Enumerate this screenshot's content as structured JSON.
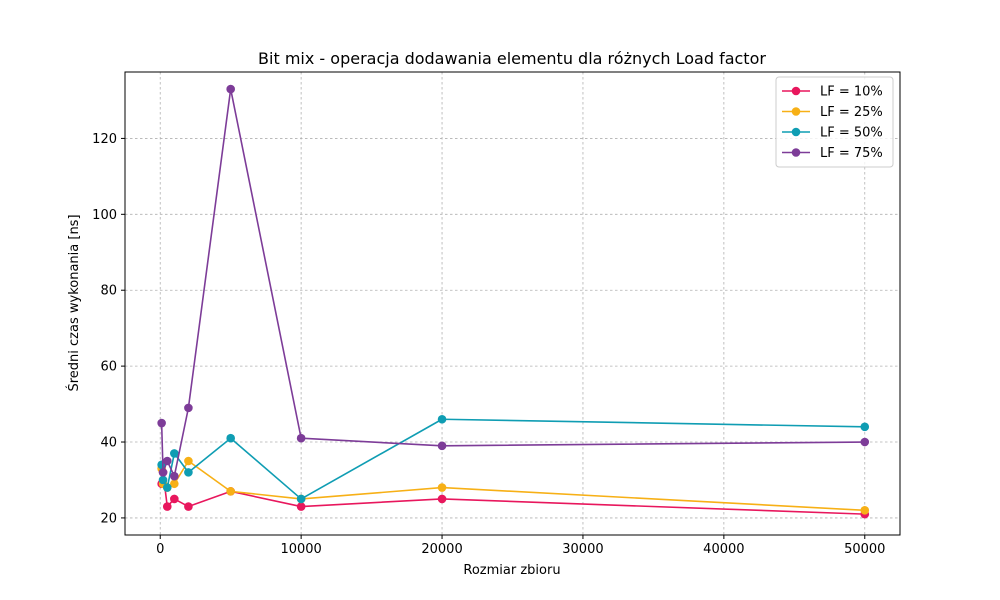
{
  "chart_data": {
    "type": "line",
    "title": "Bit mix - operacja dodawania elementu dla różnych Load factor",
    "xlabel": "Rozmiar zbioru",
    "ylabel": "Średni czas wykonania [ns]",
    "xlim": [
      -2500,
      52500
    ],
    "ylim": [
      15.5,
      137.5
    ],
    "xticks": [
      0,
      10000,
      20000,
      30000,
      40000,
      50000
    ],
    "yticks": [
      20,
      40,
      60,
      80,
      100,
      120
    ],
    "grid": true,
    "legend_position": "top-right",
    "x": [
      100,
      200,
      500,
      1000,
      2000,
      5000,
      10000,
      20000,
      50000
    ],
    "series": [
      {
        "name": "LF = 10%",
        "color": "#e8175d",
        "values": [
          29,
          32,
          23,
          25,
          23,
          27,
          23,
          25,
          21
        ]
      },
      {
        "name": "LF = 25%",
        "color": "#f7b016",
        "values": [
          33,
          29,
          28,
          29,
          35,
          27,
          25,
          28,
          22
        ]
      },
      {
        "name": "LF = 50%",
        "color": "#0f9db3",
        "values": [
          34,
          30,
          28,
          37,
          32,
          41,
          25,
          46,
          44
        ]
      },
      {
        "name": "LF = 75%",
        "color": "#7d3c98",
        "values": [
          45,
          32,
          35,
          31,
          49,
          133,
          41,
          39,
          40
        ]
      }
    ]
  }
}
